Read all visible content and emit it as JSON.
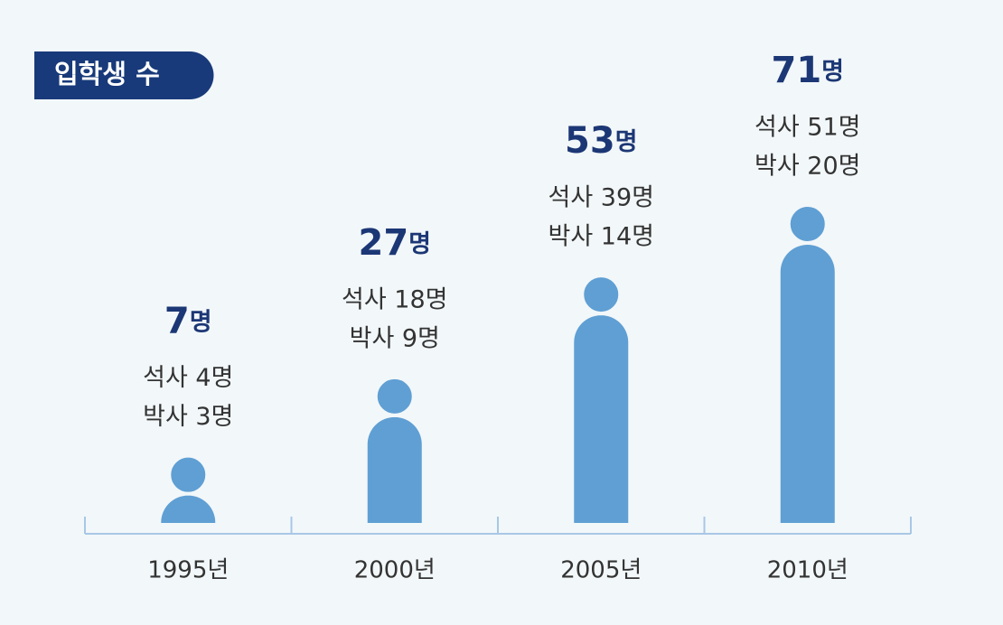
{
  "chart_data": {
    "type": "bar",
    "title": "입학생 수",
    "categories": [
      "1995년",
      "2000년",
      "2005년",
      "2010년"
    ],
    "values": [
      7,
      27,
      53,
      71
    ],
    "value_labels": [
      "7명",
      "27명",
      "53명",
      "71명"
    ],
    "series": [
      {
        "name": "석사",
        "values": [
          4,
          18,
          39,
          51
        ],
        "value_labels": [
          "석사 4명",
          "석사 18명",
          "석사 39명",
          "석사 51명"
        ]
      },
      {
        "name": "박사",
        "values": [
          3,
          9,
          14,
          20
        ],
        "value_labels": [
          "박사 3명",
          "박사 9명",
          "박사 14명",
          "박사 20명"
        ]
      }
    ],
    "color": "#5f9fd4",
    "ylim": [
      0,
      80
    ]
  }
}
